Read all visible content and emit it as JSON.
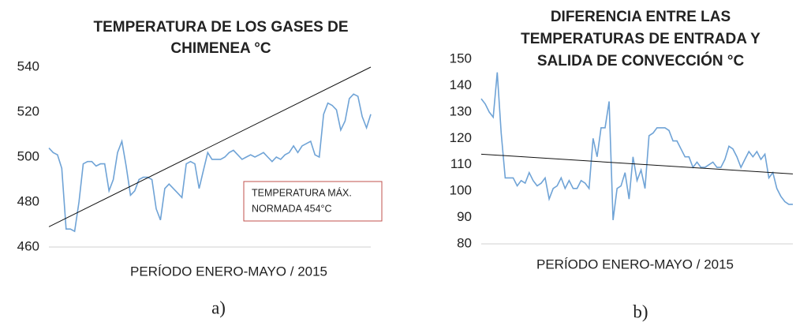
{
  "chart_data": [
    {
      "type": "line",
      "title": [
        "TEMPERATURA DE LOS GASES DE",
        "CHIMENEA °C"
      ],
      "x_label": "PERÍODO ENERO-MAYO / 2015",
      "caption": "a)",
      "annotation": [
        "TEMPERATURA  MÁX.",
        "NORMADA 454°C"
      ],
      "ylim": [
        460,
        540
      ],
      "yticks": [
        460,
        480,
        500,
        520,
        540
      ],
      "color": "#6fa3d6",
      "values": [
        504,
        502,
        501,
        495,
        468,
        468,
        467,
        480,
        497,
        498,
        498,
        496,
        497,
        497,
        485,
        490,
        502,
        507,
        496,
        483,
        485,
        490,
        491,
        491,
        490,
        477,
        472,
        486,
        488,
        486,
        484,
        482,
        497,
        498,
        497,
        486,
        494,
        502,
        499,
        499,
        499,
        500,
        502,
        503,
        501,
        499,
        500,
        501,
        500,
        501,
        502,
        500,
        498,
        500,
        499,
        501,
        502,
        505,
        502,
        505,
        506,
        507,
        501,
        500,
        519,
        524,
        523,
        521,
        512,
        516,
        526,
        528,
        527,
        518,
        513,
        519
      ],
      "trendline": [
        469,
        540
      ]
    },
    {
      "type": "line",
      "title": [
        "DIFERENCIA ENTRE LAS",
        "TEMPERATURAS DE ENTRADA Y",
        "SALIDA DE CONVECCIÓN °C"
      ],
      "x_label": "PERÍODO ENERO-MAYO / 2015",
      "caption": "b)",
      "ylim": [
        80,
        150
      ],
      "yticks": [
        80,
        90,
        100,
        110,
        120,
        130,
        140,
        150
      ],
      "color": "#6fa3d6",
      "values": [
        135,
        133,
        130,
        128,
        145,
        122,
        105,
        105,
        105,
        102,
        104,
        103,
        107,
        104,
        102,
        103,
        105,
        97,
        101,
        102,
        105,
        101,
        104,
        101,
        101,
        104,
        103,
        101,
        120,
        113,
        124,
        124,
        134,
        89,
        101,
        102,
        107,
        97,
        113,
        104,
        108,
        101,
        121,
        122,
        124,
        124,
        124,
        123,
        119,
        119,
        116,
        113,
        113,
        109,
        111,
        109,
        109,
        110,
        111,
        109,
        109,
        112,
        117,
        116,
        113,
        109,
        112,
        115,
        113,
        115,
        112,
        114,
        105,
        107,
        101,
        98,
        96,
        95,
        95
      ],
      "trendline": [
        114,
        106.5
      ]
    }
  ]
}
